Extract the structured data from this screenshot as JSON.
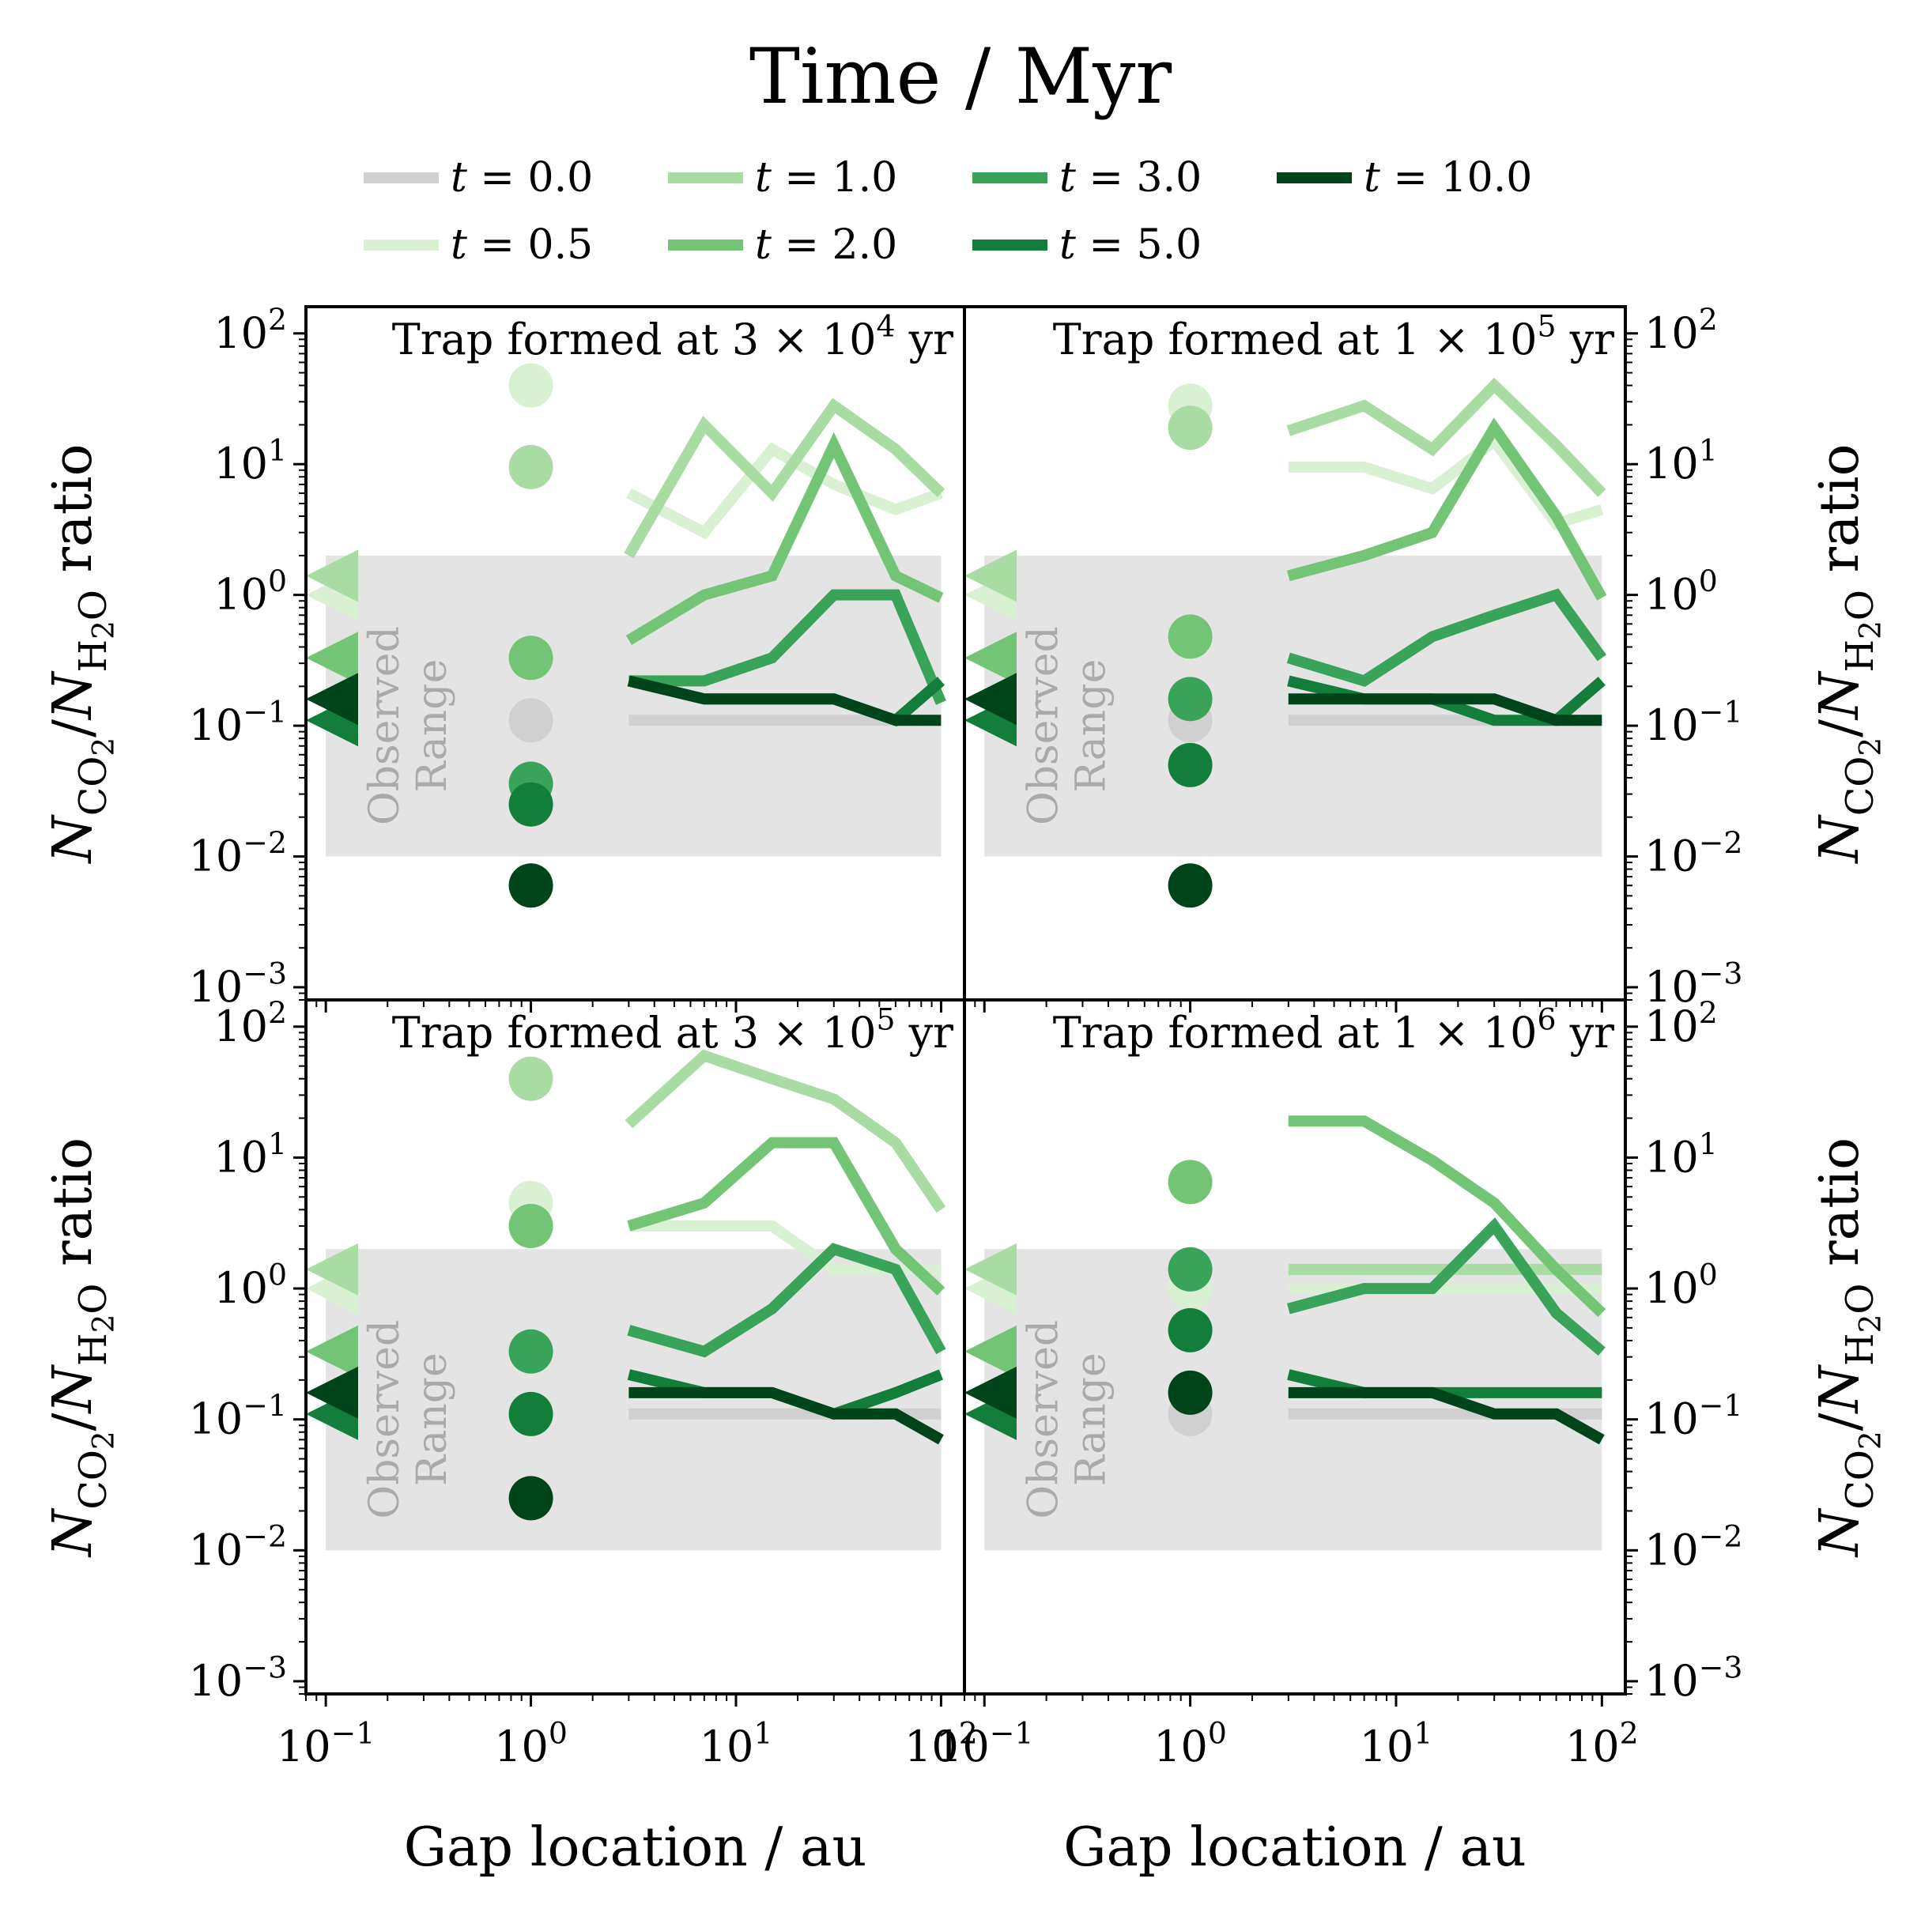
{
  "legend": {
    "title": "Time / Myr",
    "entries": [
      {
        "label": "t = 0.0",
        "color": "#d0d0d0"
      },
      {
        "label": "t = 0.5",
        "color": "#d9f0d3"
      },
      {
        "label": "t = 1.0",
        "color": "#a8dca2"
      },
      {
        "label": "t = 2.0",
        "color": "#74c476"
      },
      {
        "label": "t = 3.0",
        "color": "#3aa35a"
      },
      {
        "label": "t = 5.0",
        "color": "#137e3c"
      },
      {
        "label": "t = 10.0",
        "color": "#00441b"
      }
    ]
  },
  "axes": {
    "xlabel": "Gap location / au",
    "ylabel": "N_CO2 / N_H2O ratio",
    "xticks": [
      "10^-1",
      "10^0",
      "10^1",
      "10^2"
    ],
    "yticks": [
      "10^-3",
      "10^-2",
      "10^-1",
      "10^0",
      "10^1",
      "10^2"
    ],
    "xlim": [
      0.08,
      130
    ],
    "ylim": [
      0.0008,
      160
    ],
    "scale": "log-log",
    "observed_label": [
      "Observed",
      "Range"
    ],
    "observed_range": {
      "x": [
        0.1,
        100
      ],
      "y": [
        0.01,
        2
      ]
    }
  },
  "chart_data": [
    {
      "type": "line",
      "title": "Trap formed at 3 × 10^4 yr",
      "x": [
        3,
        7,
        15,
        30,
        60,
        100
      ],
      "series": [
        {
          "name": "t = 0.0",
          "values": [
            0.11,
            0.11,
            0.11,
            0.11,
            0.11,
            0.11
          ],
          "point": 0.11,
          "marker": null
        },
        {
          "name": "t = 0.5",
          "values": [
            6,
            3,
            13,
            7,
            4.5,
            6
          ],
          "point": 40,
          "marker": 1.0
        },
        {
          "name": "t = 1.0",
          "values": [
            2,
            20,
            6,
            28,
            13,
            6
          ],
          "point": 9.5,
          "marker": 1.4
        },
        {
          "name": "t = 2.0",
          "values": [
            0.45,
            1.0,
            1.4,
            14,
            1.4,
            0.95
          ],
          "point": 0.33,
          "marker": 0.33
        },
        {
          "name": "t = 3.0",
          "values": [
            0.22,
            0.22,
            0.33,
            1.0,
            1.0,
            0.15
          ],
          "point": 0.036,
          "marker": 0.16
        },
        {
          "name": "t = 5.0",
          "values": [
            0.22,
            0.16,
            0.16,
            0.16,
            0.11,
            0.22
          ],
          "point": 0.025,
          "marker": 0.11
        },
        {
          "name": "t = 10.0",
          "values": [
            0.22,
            0.16,
            0.16,
            0.16,
            0.11,
            0.11
          ],
          "point": 0.006,
          "marker": 0.16
        }
      ]
    },
    {
      "type": "line",
      "title": "Trap formed at 1 × 10^5 yr",
      "x": [
        3,
        7,
        15,
        30,
        60,
        100
      ],
      "series": [
        {
          "name": "t = 0.0",
          "values": [
            0.11,
            0.11,
            0.11,
            0.11,
            0.11,
            0.11
          ],
          "point": 0.11,
          "marker": null
        },
        {
          "name": "t = 0.5",
          "values": [
            9.5,
            9.5,
            6.5,
            15,
            3.5,
            4.5
          ],
          "point": 28,
          "marker": 1.0
        },
        {
          "name": "t = 1.0",
          "values": [
            18,
            28,
            13,
            40,
            14,
            6
          ],
          "point": 19,
          "marker": 1.4
        },
        {
          "name": "t = 2.0",
          "values": [
            1.4,
            2.0,
            3.0,
            19,
            4.0,
            0.95
          ],
          "point": 0.48,
          "marker": 0.33
        },
        {
          "name": "t = 3.0",
          "values": [
            0.33,
            0.22,
            0.48,
            0.7,
            1.0,
            0.33
          ],
          "point": 0.16,
          "marker": 0.16
        },
        {
          "name": "t = 5.0",
          "values": [
            0.22,
            0.16,
            0.16,
            0.11,
            0.11,
            0.22
          ],
          "point": 0.05,
          "marker": 0.11
        },
        {
          "name": "t = 10.0",
          "values": [
            0.16,
            0.16,
            0.16,
            0.16,
            0.11,
            0.11
          ],
          "point": 0.006,
          "marker": 0.16
        }
      ]
    },
    {
      "type": "line",
      "title": "Trap formed at 3 × 10^5 yr",
      "x": [
        3,
        7,
        15,
        30,
        60,
        100
      ],
      "series": [
        {
          "name": "t = 0.0",
          "values": [
            0.11,
            0.11,
            0.11,
            0.11,
            0.11,
            0.11
          ],
          "point": null,
          "marker": null
        },
        {
          "name": "t = 0.5",
          "values": [
            3,
            3,
            3,
            1.4,
            1.4,
            1.4
          ],
          "point": 4.5,
          "marker": 1.0
        },
        {
          "name": "t = 1.0",
          "values": [
            18,
            60,
            40,
            28,
            13,
            4
          ],
          "point": 40,
          "marker": 1.4
        },
        {
          "name": "t = 2.0",
          "values": [
            3,
            4.5,
            13,
            13,
            2.0,
            0.95
          ],
          "point": 3.0,
          "marker": 0.33
        },
        {
          "name": "t = 3.0",
          "values": [
            0.48,
            0.33,
            0.7,
            2.0,
            1.4,
            0.33
          ],
          "point": 0.33,
          "marker": 0.16
        },
        {
          "name": "t = 5.0",
          "values": [
            0.22,
            0.16,
            0.16,
            0.11,
            0.16,
            0.22
          ],
          "point": 0.11,
          "marker": 0.11
        },
        {
          "name": "t = 10.0",
          "values": [
            0.16,
            0.16,
            0.16,
            0.11,
            0.11,
            0.07
          ],
          "point": 0.025,
          "marker": 0.16
        }
      ]
    },
    {
      "type": "line",
      "title": "Trap formed at 1 × 10^6 yr",
      "x": [
        3,
        7,
        15,
        30,
        60,
        100
      ],
      "series": [
        {
          "name": "t = 0.0",
          "values": [
            0.11,
            0.11,
            0.11,
            0.11,
            0.11,
            0.11
          ],
          "point": 0.11,
          "marker": null
        },
        {
          "name": "t = 0.5",
          "values": [
            1.0,
            1.0,
            1.0,
            1.0,
            1.0,
            1.0
          ],
          "point": 1.0,
          "marker": 1.0
        },
        {
          "name": "t = 1.0",
          "values": [
            1.4,
            1.4,
            1.4,
            1.4,
            1.4,
            1.4
          ],
          "point": null,
          "marker": 1.4
        },
        {
          "name": "t = 2.0",
          "values": [
            19,
            19,
            9.5,
            4.5,
            1.4,
            0.65
          ],
          "point": 6.5,
          "marker": 0.33
        },
        {
          "name": "t = 3.0",
          "values": [
            0.7,
            1.0,
            1.0,
            3.0,
            0.65,
            0.33
          ],
          "point": 1.4,
          "marker": 0.16
        },
        {
          "name": "t = 5.0",
          "values": [
            0.22,
            0.16,
            0.16,
            0.16,
            0.16,
            0.16
          ],
          "point": 0.48,
          "marker": 0.11
        },
        {
          "name": "t = 10.0",
          "values": [
            0.16,
            0.16,
            0.16,
            0.11,
            0.11,
            0.07
          ],
          "point": 0.16,
          "marker": 0.16
        }
      ]
    }
  ]
}
